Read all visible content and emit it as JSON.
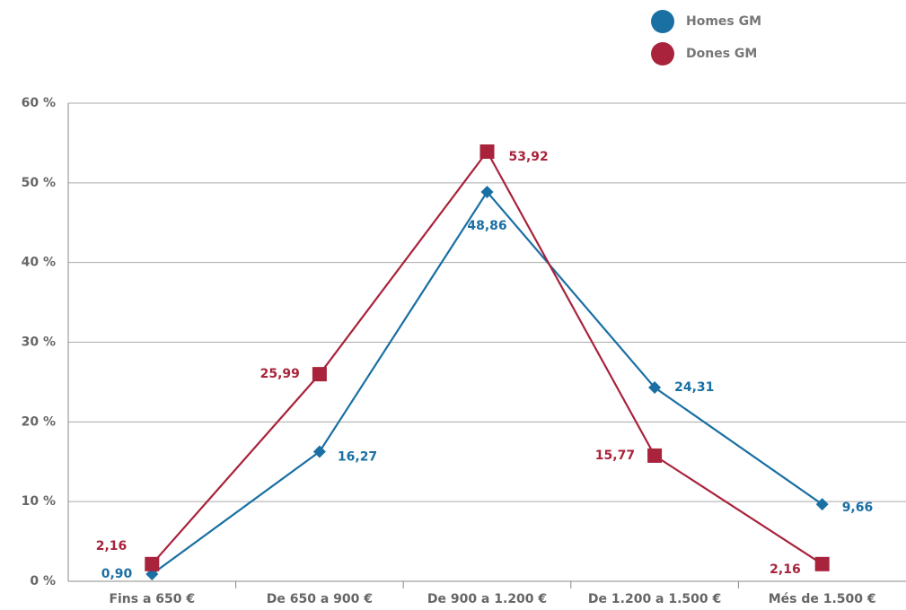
{
  "chart_data": {
    "type": "line",
    "categories": [
      "Fins a 650 €",
      "De 650 a 900 €",
      "De 900 a 1.200 €",
      "De 1.200 a 1.500 €",
      "Més de 1.500 €"
    ],
    "series": [
      {
        "name": "Homes GM",
        "color": "#1a6fa3",
        "marker": "diamond",
        "values": [
          0.9,
          16.27,
          48.86,
          24.31,
          9.66
        ],
        "value_labels": [
          "0,90",
          "16,27",
          "48,86",
          "24,31",
          "9,66"
        ]
      },
      {
        "name": "Dones GM",
        "color": "#a8233b",
        "marker": "square",
        "values": [
          2.16,
          25.99,
          53.92,
          15.77,
          2.16
        ],
        "value_labels": [
          "2,16",
          "25,99",
          "53,92",
          "15,77",
          "2,16"
        ]
      }
    ],
    "ylim": [
      0,
      60
    ],
    "yticks": [
      {
        "value": 0,
        "label": "0 %"
      },
      {
        "value": 10,
        "label": "10 %"
      },
      {
        "value": 20,
        "label": "20 %"
      },
      {
        "value": 30,
        "label": "30 %"
      },
      {
        "value": 40,
        "label": "40 %"
      },
      {
        "value": 50,
        "label": "50 %"
      },
      {
        "value": 60,
        "label": "60 %"
      }
    ],
    "grid": true,
    "legend": "top-right"
  }
}
